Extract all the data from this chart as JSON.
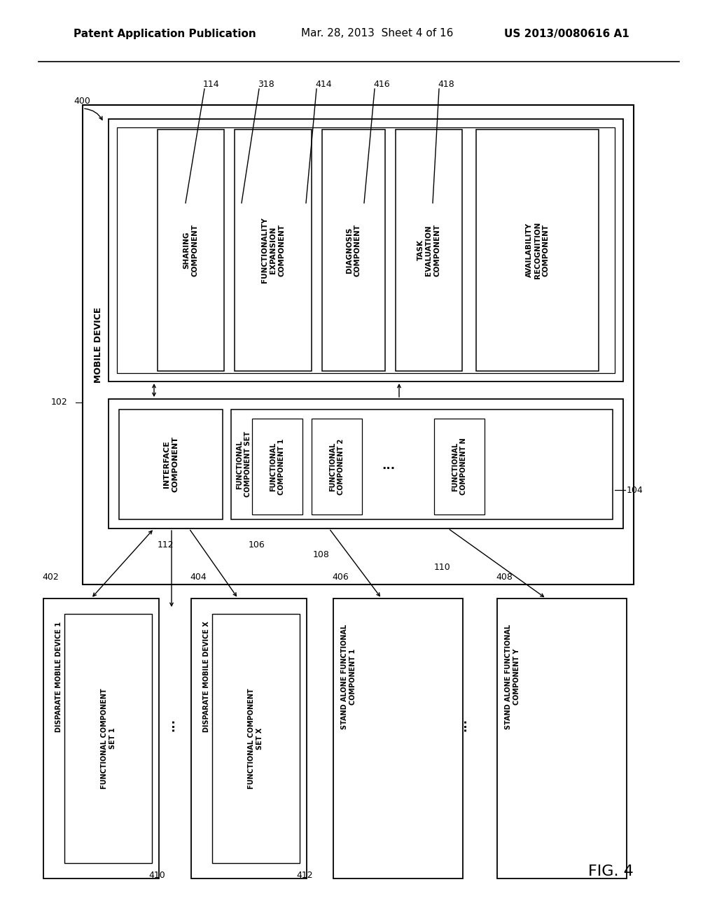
{
  "header_left": "Patent Application Publication",
  "header_center": "Mar. 28, 2013  Sheet 4 of 16",
  "header_right": "US 2013/0080616 A1",
  "fig_label": "FIG. 4",
  "bg_color": "#ffffff",
  "line_color": "#000000",
  "labels": {
    "400": "400",
    "102": "102",
    "104": "104",
    "112": "112",
    "106": "106",
    "108": "108",
    "110": "110",
    "114": "114",
    "318": "318",
    "414": "414",
    "416": "416",
    "418": "418",
    "402": "402",
    "404": "404",
    "406": "406",
    "408": "408",
    "410": "410",
    "412": "412"
  },
  "mobile_device_label": "MOBILE DEVICE",
  "top_comp_boxes": [
    {
      "label": "SHARING\nCOMPONENT",
      "id": "114"
    },
    {
      "label": "FUNCTIONALITY\nEXPANSION\nCOMPONENT",
      "id": "318"
    },
    {
      "label": "DIAGNOSIS\nCOMPONENT",
      "id": "414"
    },
    {
      "label": "TASK\nEVALUATION\nCOMPONENT",
      "id": "416"
    },
    {
      "label": "AVAILABILITY\nRECOGNITION\nCOMPONENT",
      "id": "418"
    }
  ],
  "bottom_groups": [
    {
      "outer": "DISPARATE MOBILE DEVICE 1",
      "inner": "FUNCTIONAL COMPONENT\nSET 1",
      "inner_id": "410",
      "outer_id": "402",
      "has_inner": true
    },
    {
      "outer": "DISPARATE MOBILE DEVICE X",
      "inner": "FUNCTIONAL COMPONENT\nSET X",
      "inner_id": "412",
      "outer_id": "404",
      "has_inner": true
    },
    {
      "outer": "STAND ALONE FUNCTIONAL\nCOMPONENT 1",
      "inner": "",
      "inner_id": "",
      "outer_id": "406",
      "has_inner": false
    },
    {
      "outer": "STAND ALONE FUNCTIONAL\nCOMPONENT Y",
      "inner": "",
      "inner_id": "",
      "outer_id": "408",
      "has_inner": false
    }
  ]
}
